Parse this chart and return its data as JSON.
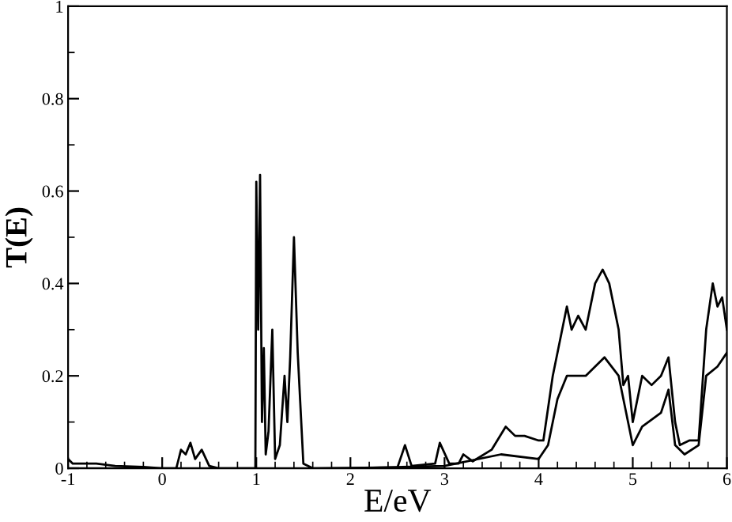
{
  "chart_data": {
    "type": "line",
    "xlabel": "E/eV",
    "ylabel": "T(E)",
    "xlim": [
      -1,
      6
    ],
    "ylim": [
      0,
      1
    ],
    "xticks": [
      {
        "value": -1,
        "label": "-1"
      },
      0,
      1,
      2,
      3,
      4,
      5,
      6
    ],
    "yticks": [
      0,
      0.2,
      0.4,
      0.6,
      0.8,
      1
    ],
    "grid": false,
    "legend": false,
    "marker": "none",
    "line_style": "solid",
    "series": [
      {
        "color": "#000000",
        "x": [
          -1,
          -0.95,
          -0.7,
          -0.5,
          -0.2,
          0,
          0.15,
          0.2,
          0.25,
          0.3,
          0.35,
          0.42,
          0.5,
          0.6,
          0.99,
          1.0,
          1.02,
          1.04,
          1.06,
          1.08,
          1.1,
          1.13,
          1.17,
          1.2,
          1.25,
          1.3,
          1.33,
          1.36,
          1.4,
          1.44,
          1.5,
          1.6,
          2.5,
          2.58,
          2.65,
          2.9,
          2.95,
          3.05,
          3.15,
          3.2,
          3.3,
          3.5,
          3.65,
          3.75,
          3.85,
          4.0,
          4.05,
          4.15,
          4.25,
          4.3,
          4.35,
          4.42,
          4.5,
          4.6,
          4.68,
          4.75,
          4.85,
          4.9,
          4.95,
          5.0,
          5.1,
          5.2,
          5.3,
          5.38,
          5.45,
          5.5,
          5.6,
          5.7,
          5.78,
          5.85,
          5.9,
          5.95,
          6.0
        ],
        "values": [
          0.02,
          0.01,
          0.01,
          0.005,
          0.003,
          0,
          0,
          0.04,
          0.03,
          0.055,
          0.02,
          0.04,
          0.005,
          0,
          0,
          0.62,
          0.3,
          0.635,
          0.1,
          0.26,
          0.03,
          0.08,
          0.3,
          0.02,
          0.05,
          0.2,
          0.1,
          0.24,
          0.5,
          0.25,
          0.01,
          0,
          0.002,
          0.05,
          0.005,
          0.01,
          0.055,
          0.01,
          0.01,
          0.03,
          0.015,
          0.04,
          0.09,
          0.07,
          0.07,
          0.06,
          0.06,
          0.2,
          0.3,
          0.35,
          0.3,
          0.33,
          0.3,
          0.4,
          0.43,
          0.4,
          0.3,
          0.18,
          0.2,
          0.1,
          0.2,
          0.18,
          0.2,
          0.24,
          0.1,
          0.05,
          0.06,
          0.06,
          0.3,
          0.4,
          0.35,
          0.37,
          0.3
        ]
      },
      {
        "color": "#000000",
        "x": [
          -1,
          0,
          1,
          2,
          3,
          3.6,
          4.0,
          4.1,
          4.2,
          4.3,
          4.5,
          4.7,
          4.85,
          5.0,
          5.1,
          5.3,
          5.38,
          5.45,
          5.55,
          5.7,
          5.78,
          5.9,
          6.0
        ],
        "values": [
          0,
          0,
          0,
          0,
          0.005,
          0.03,
          0.02,
          0.05,
          0.15,
          0.2,
          0.2,
          0.24,
          0.2,
          0.05,
          0.09,
          0.12,
          0.17,
          0.05,
          0.03,
          0.05,
          0.2,
          0.22,
          0.25
        ]
      }
    ]
  }
}
